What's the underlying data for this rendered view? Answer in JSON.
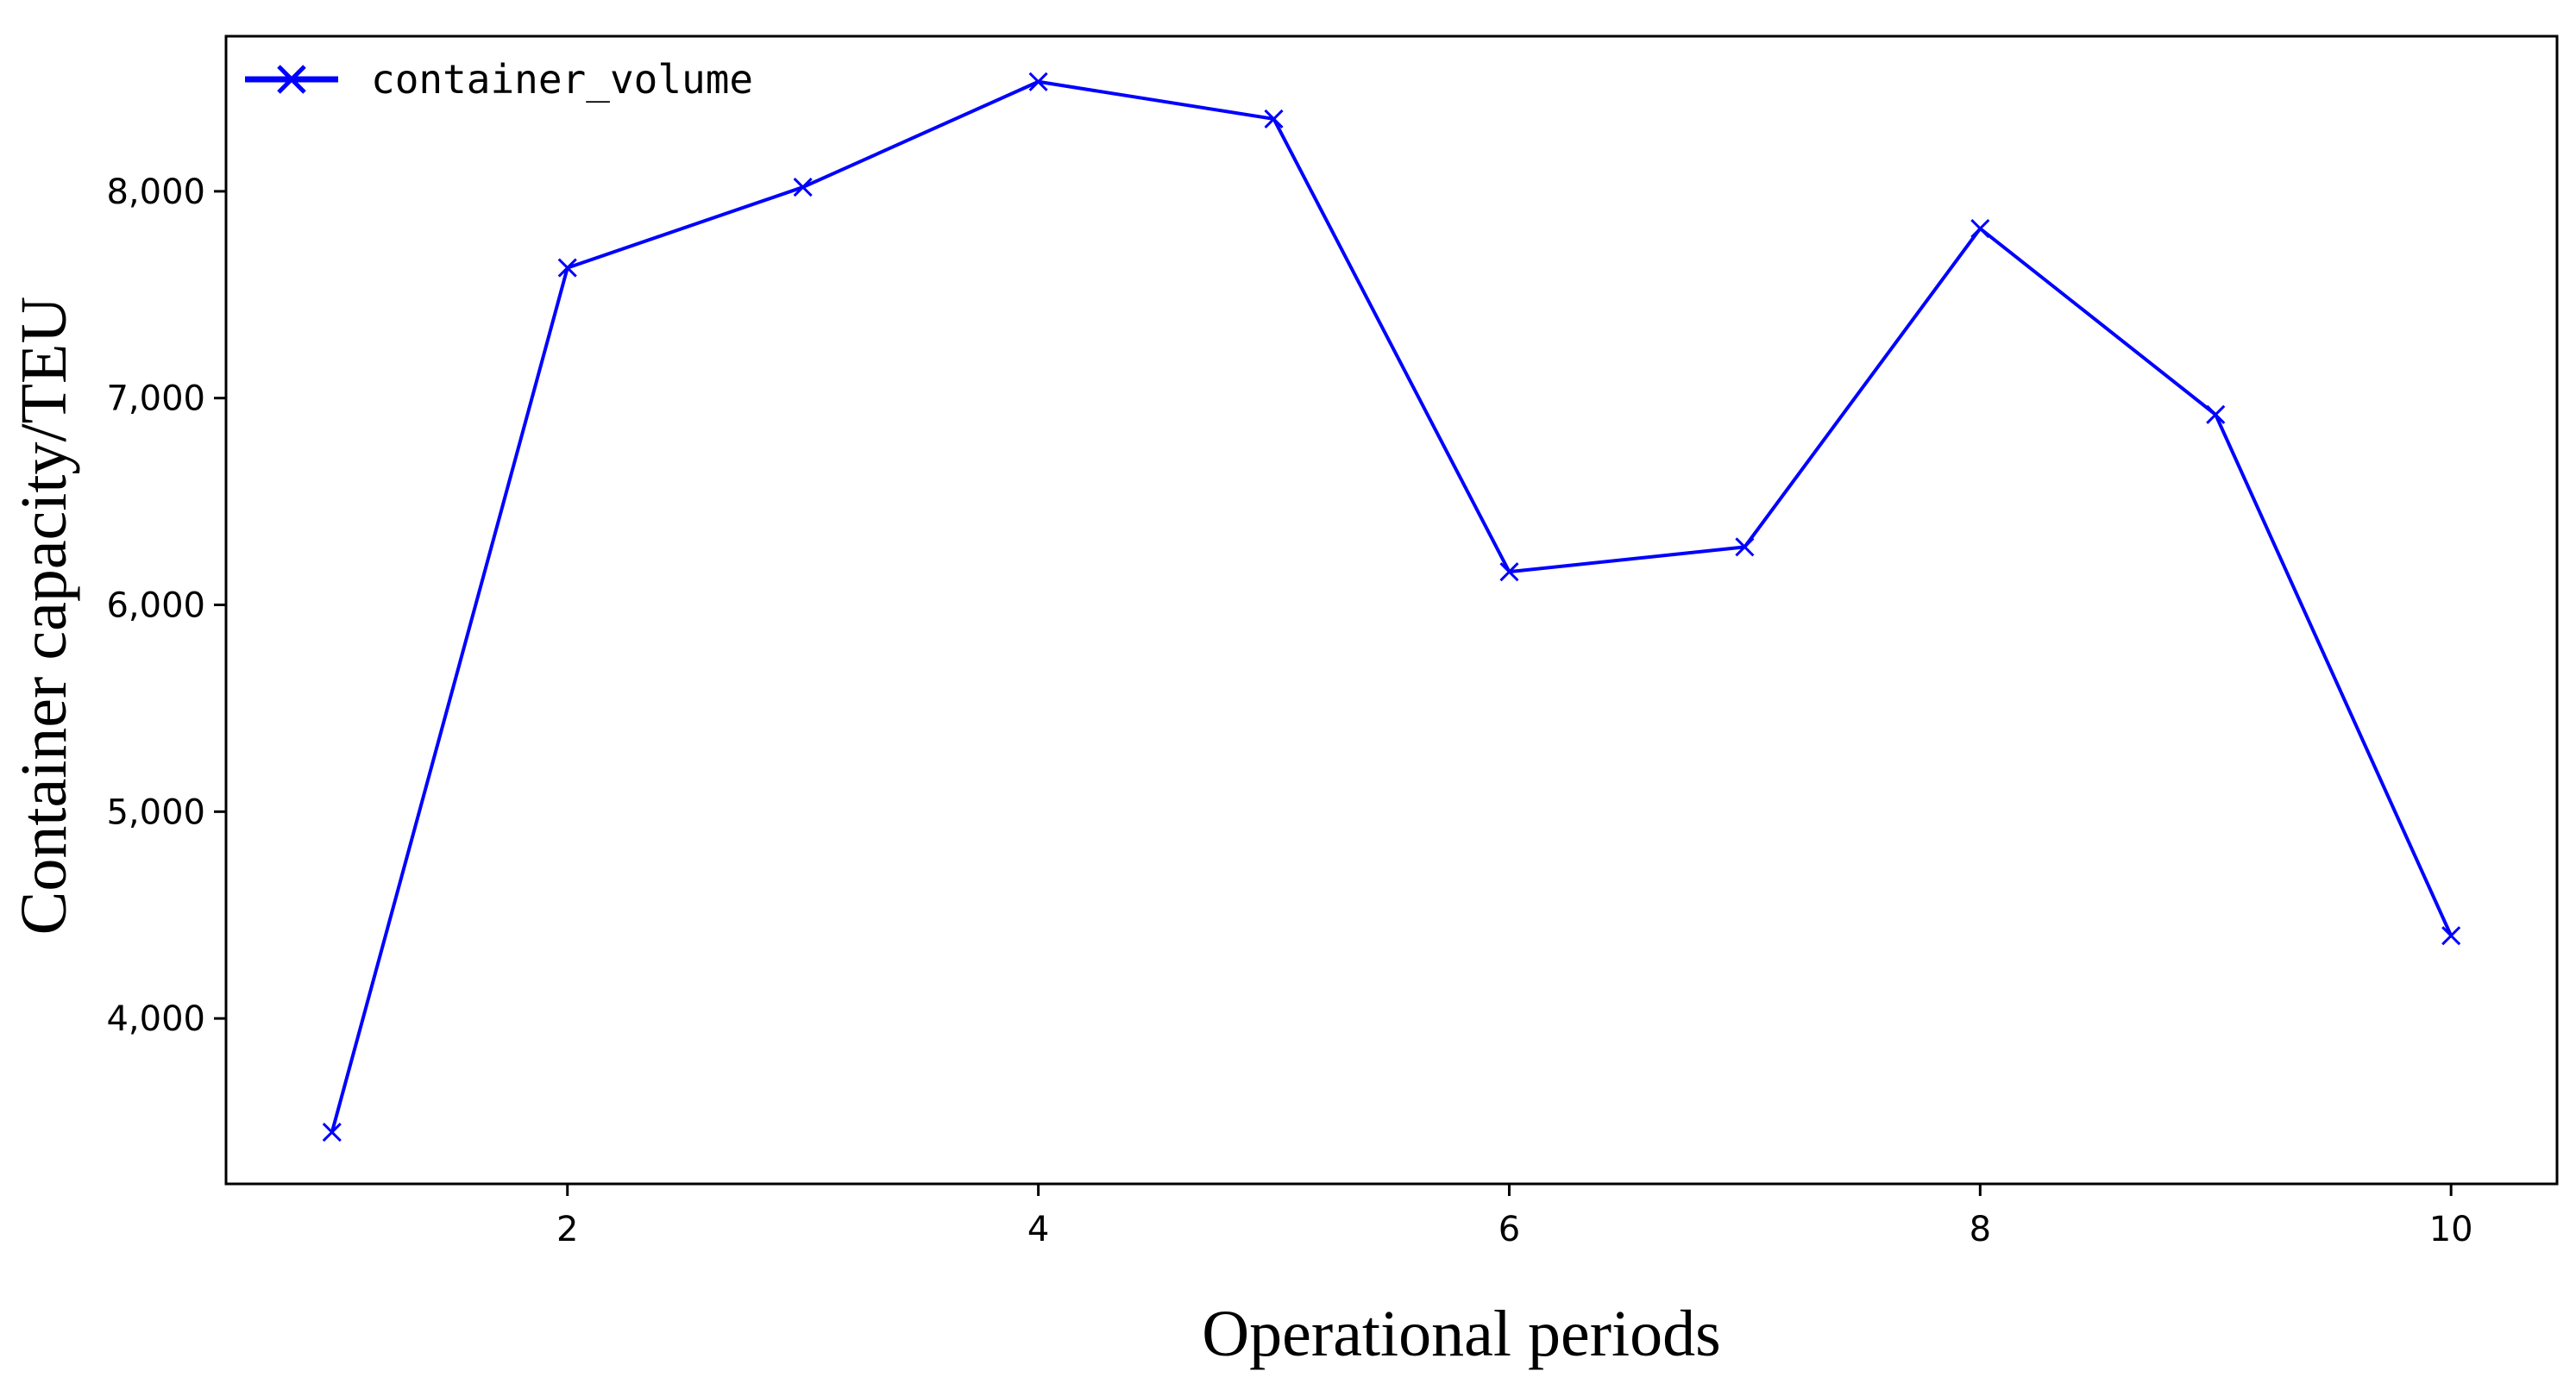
{
  "chart_data": {
    "type": "line",
    "xlabel": "Operational periods",
    "ylabel": "Container capacity/TEU",
    "xlim": [
      0.55,
      10.45
    ],
    "ylim": [
      3200,
      8750
    ],
    "x_ticks": [
      2,
      4,
      6,
      8,
      10
    ],
    "x_tick_labels": [
      "2",
      "4",
      "6",
      "8",
      "10"
    ],
    "y_ticks": [
      4000,
      5000,
      6000,
      7000,
      8000
    ],
    "y_tick_labels": [
      "4,000",
      "5,000",
      "6,000",
      "7,000",
      "8,000"
    ],
    "grid": false,
    "legend": {
      "position": "top-left"
    },
    "series": [
      {
        "name": "container_volume",
        "color": "#0000ff",
        "marker": "x",
        "x": [
          1,
          2,
          3,
          4,
          5,
          6,
          7,
          8,
          9,
          10
        ],
        "values": [
          3450,
          7630,
          8020,
          8530,
          8350,
          6160,
          6280,
          7820,
          6920,
          4400
        ]
      }
    ]
  }
}
